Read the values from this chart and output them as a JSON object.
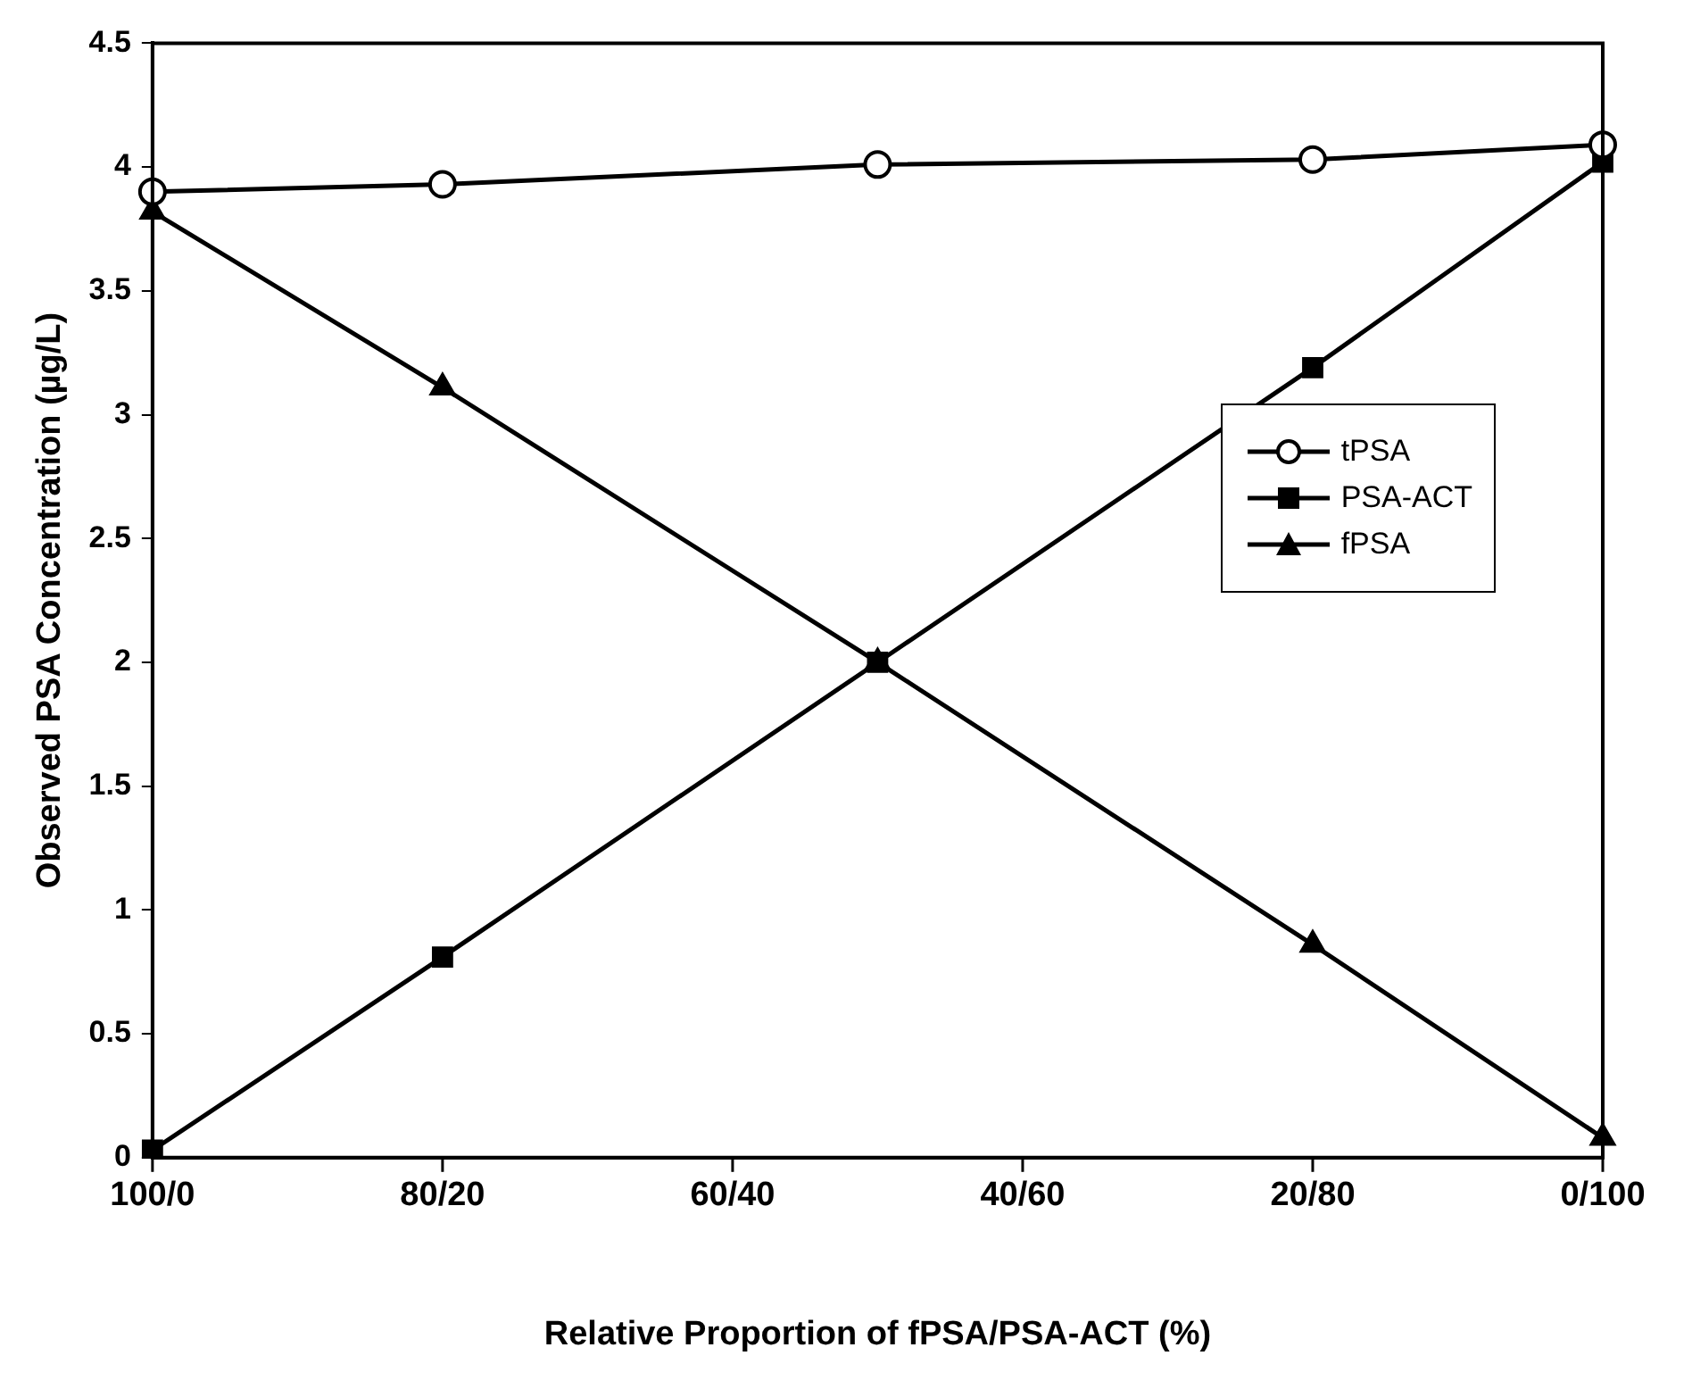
{
  "chart_data": {
    "type": "line",
    "xlabel": "Relative Proportion of fPSA/PSA-ACT (%)",
    "ylabel": "Observed PSA Concentration (µg/L)",
    "categories": [
      "100/0",
      null,
      "80/20",
      null,
      "60/40",
      null,
      "40/60",
      null,
      "20/80",
      null,
      "0/100"
    ],
    "ylim": [
      0,
      4.5
    ],
    "yticks": [
      0,
      0.5,
      1,
      1.5,
      2,
      2.5,
      3,
      3.5,
      4,
      4.5
    ],
    "series": [
      {
        "name": "tPSA",
        "color": "#000000",
        "marker": "circle",
        "values": [
          3.9,
          null,
          3.93,
          null,
          null,
          4.01,
          null,
          null,
          4.03,
          null,
          4.09
        ]
      },
      {
        "name": "PSA-ACT",
        "color": "#000000",
        "marker": "square",
        "values": [
          0.03,
          null,
          0.81,
          null,
          null,
          2.0,
          null,
          null,
          3.19,
          null,
          4.02
        ]
      },
      {
        "name": "fPSA",
        "color": "#000000",
        "marker": "triangle",
        "values": [
          3.82,
          null,
          3.11,
          null,
          null,
          2.0,
          null,
          null,
          0.86,
          null,
          0.08
        ]
      }
    ],
    "grid": false,
    "legend": "right",
    "line_style": "solid"
  }
}
